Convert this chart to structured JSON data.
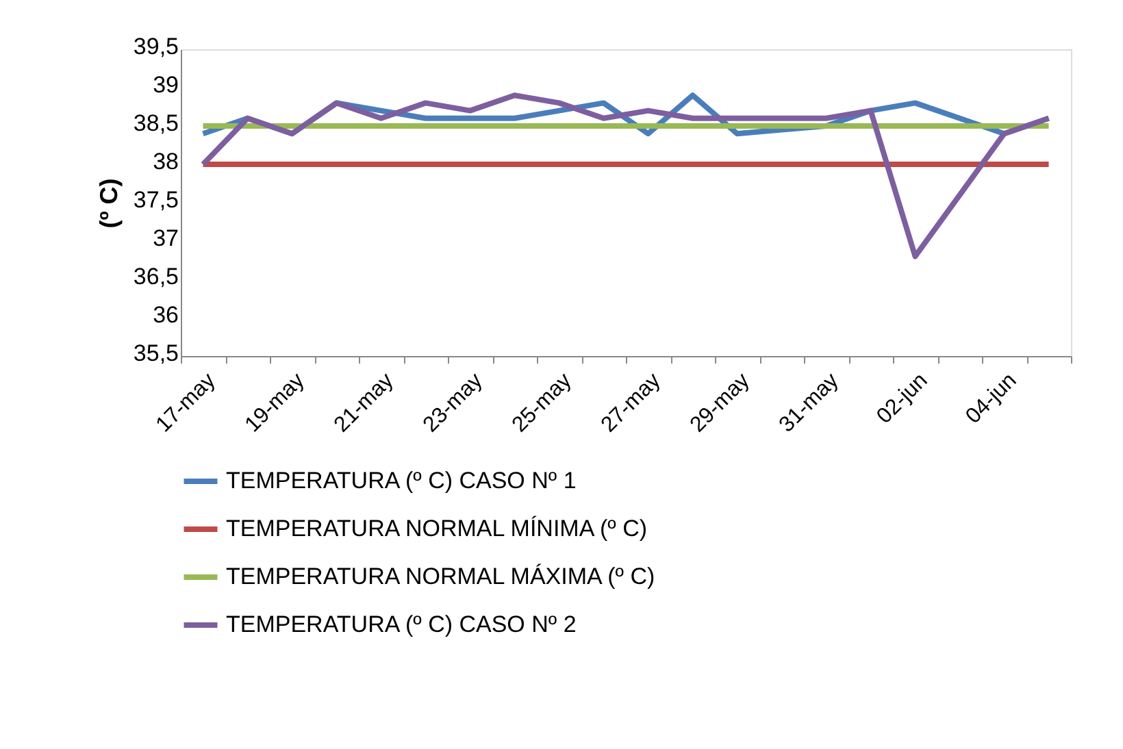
{
  "chart_data": {
    "type": "line",
    "ylabel": "(º C)",
    "categories": [
      "17-may",
      null,
      "19-may",
      null,
      "21-may",
      null,
      "23-may",
      null,
      "25-may",
      null,
      "27-may",
      null,
      "29-may",
      null,
      "31-may",
      null,
      "02-jun",
      null,
      "04-jun",
      null
    ],
    "series": [
      {
        "name": "TEMPERATURA (º C) CASO Nº 1",
        "color": "#4a7ebb",
        "values": [
          38.4,
          38.6,
          38.4,
          38.8,
          38.7,
          38.6,
          38.6,
          38.6,
          38.7,
          38.8,
          38.4,
          38.9,
          38.4,
          38.45,
          38.5,
          38.7,
          38.8,
          38.6,
          38.4,
          38.6
        ]
      },
      {
        "name": "TEMPERATURA NORMAL MÍNIMA (º C)",
        "color": "#be4b48",
        "values": [
          38,
          38,
          38,
          38,
          38,
          38,
          38,
          38,
          38,
          38,
          38,
          38,
          38,
          38,
          38,
          38,
          38,
          38,
          38,
          38
        ]
      },
      {
        "name": "TEMPERATURA NORMAL MÁXIMA (º C)",
        "color": "#98b954",
        "values": [
          38.5,
          38.5,
          38.5,
          38.5,
          38.5,
          38.5,
          38.5,
          38.5,
          38.5,
          38.5,
          38.5,
          38.5,
          38.5,
          38.5,
          38.5,
          38.5,
          38.5,
          38.5,
          38.5,
          38.5
        ]
      },
      {
        "name": "TEMPERATURA (º C) CASO Nº 2",
        "color": "#7d5fa0",
        "values": [
          38.0,
          38.6,
          38.4,
          38.8,
          38.6,
          38.8,
          38.7,
          38.9,
          38.8,
          38.6,
          38.7,
          38.6,
          38.6,
          38.6,
          38.6,
          38.7,
          36.8,
          37.6,
          38.4,
          38.6
        ]
      }
    ],
    "ylim": [
      35.5,
      39.5
    ],
    "yticks": [
      {
        "value": 35.5,
        "label": "35,5"
      },
      36,
      {
        "value": 36.5,
        "label": "36,5"
      },
      37,
      {
        "value": 37.5,
        "label": "37,5"
      },
      38,
      {
        "value": 38.5,
        "label": "38,5"
      },
      39,
      {
        "value": 39.5,
        "label": "39,5"
      }
    ],
    "grid": false,
    "legend": "bottom"
  }
}
